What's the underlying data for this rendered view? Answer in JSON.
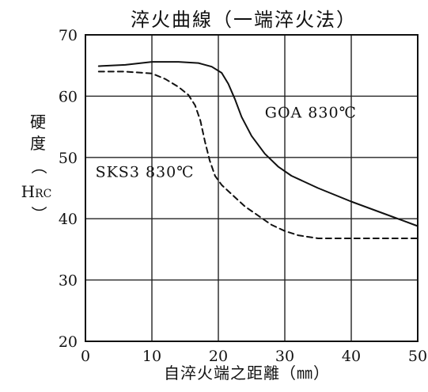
{
  "chart_data": {
    "type": "line",
    "title": "淬火曲線（一端淬火法）",
    "xlabel": "自淬火端之距離（㎜）",
    "ylabel_chars": [
      "硬",
      "度",
      "（"
    ],
    "ylabel_unit_main": "H",
    "ylabel_unit_sub": "RC",
    "ylabel_close": "）",
    "xlim": [
      0,
      50
    ],
    "ylim": [
      20,
      70
    ],
    "xticks": [
      0,
      10,
      20,
      30,
      40,
      50
    ],
    "yticks": [
      20,
      30,
      40,
      50,
      60,
      70
    ],
    "grid": true,
    "series": [
      {
        "name": "GOA 830℃",
        "style": "solid",
        "color": "#111111",
        "x": [
          2,
          6,
          10,
          14,
          17,
          19,
          20.5,
          21.5,
          22.5,
          23.5,
          25,
          27,
          29,
          31,
          35,
          40,
          45,
          50
        ],
        "y": [
          64.9,
          65.1,
          65.6,
          65.6,
          65.4,
          64.8,
          63.8,
          62,
          59.5,
          56.6,
          53.5,
          50.6,
          48.5,
          47,
          45,
          42.8,
          40.8,
          38.8
        ]
      },
      {
        "name": "SKS3 830℃",
        "style": "dashed",
        "color": "#111111",
        "x": [
          2,
          6,
          10,
          12,
          14,
          15.5,
          16.5,
          17.3,
          18,
          18.7,
          19.5,
          20.5,
          22,
          24,
          26,
          28,
          30,
          32,
          35,
          40,
          45,
          50
        ],
        "y": [
          64,
          64,
          63.7,
          62.8,
          61.5,
          60.2,
          58.5,
          56,
          52.5,
          49.5,
          47,
          45.5,
          44,
          42,
          40.5,
          39,
          38,
          37.3,
          36.8,
          36.8,
          36.8,
          36.8
        ]
      }
    ],
    "annotations": [
      {
        "text": "GOA 830℃",
        "x": 27,
        "y": 56.5
      },
      {
        "text": "SKS3 830℃",
        "x": 1.5,
        "y": 46.8
      }
    ]
  }
}
